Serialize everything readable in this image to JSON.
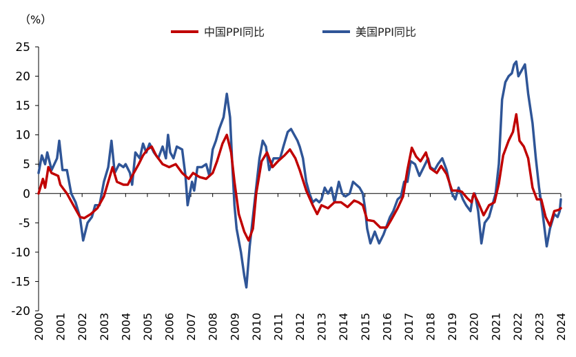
{
  "chart_data": {
    "type": "line",
    "unit_label": "（%）",
    "ylim": [
      -20,
      25
    ],
    "yticks": [
      25,
      20,
      15,
      10,
      5,
      0,
      -5,
      -10,
      -15,
      -20
    ],
    "xlim": [
      2000,
      2024
    ],
    "xticks": [
      "2000",
      "2001",
      "2002",
      "2003",
      "2004",
      "2005",
      "2006",
      "2007",
      "2008",
      "2009",
      "2010",
      "2011",
      "2012",
      "2013",
      "2014",
      "2015",
      "2016",
      "2017",
      "2018",
      "2019",
      "2020",
      "2021",
      "2022",
      "2023",
      "2024"
    ],
    "grid": false,
    "legend_position": "top",
    "series": [
      {
        "name": "中国PPI同比",
        "color": "#C00000",
        "points": [
          [
            2000.0,
            0
          ],
          [
            2000.2,
            2.5
          ],
          [
            2000.3,
            1
          ],
          [
            2000.45,
            4.5
          ],
          [
            2000.6,
            3.5
          ],
          [
            2000.9,
            3
          ],
          [
            2001.0,
            1.5
          ],
          [
            2001.3,
            0
          ],
          [
            2001.6,
            -2
          ],
          [
            2001.9,
            -4
          ],
          [
            2002.1,
            -4.2
          ],
          [
            2002.4,
            -3.5
          ],
          [
            2002.7,
            -2.5
          ],
          [
            2003.0,
            -0.5
          ],
          [
            2003.2,
            2
          ],
          [
            2003.4,
            4.5
          ],
          [
            2003.6,
            2
          ],
          [
            2003.9,
            1.5
          ],
          [
            2004.1,
            1.5
          ],
          [
            2004.3,
            3
          ],
          [
            2004.6,
            5
          ],
          [
            2004.8,
            6.5
          ],
          [
            2005.0,
            7.5
          ],
          [
            2005.2,
            8
          ],
          [
            2005.4,
            6.5
          ],
          [
            2005.7,
            5
          ],
          [
            2006.0,
            4.5
          ],
          [
            2006.3,
            5
          ],
          [
            2006.6,
            3.5
          ],
          [
            2006.9,
            2.5
          ],
          [
            2007.1,
            3.5
          ],
          [
            2007.4,
            2.8
          ],
          [
            2007.7,
            2.5
          ],
          [
            2008.0,
            3.5
          ],
          [
            2008.2,
            5.5
          ],
          [
            2008.45,
            8.5
          ],
          [
            2008.65,
            10
          ],
          [
            2008.85,
            7
          ],
          [
            2009.0,
            2
          ],
          [
            2009.2,
            -3.5
          ],
          [
            2009.45,
            -6.5
          ],
          [
            2009.65,
            -8
          ],
          [
            2009.85,
            -6
          ],
          [
            2010.0,
            0
          ],
          [
            2010.25,
            5.5
          ],
          [
            2010.5,
            7
          ],
          [
            2010.75,
            4.5
          ],
          [
            2011.0,
            5.5
          ],
          [
            2011.3,
            6.5
          ],
          [
            2011.55,
            7.5
          ],
          [
            2011.8,
            6
          ],
          [
            2012.0,
            4
          ],
          [
            2012.3,
            0.5
          ],
          [
            2012.6,
            -2
          ],
          [
            2012.8,
            -3.5
          ],
          [
            2013.0,
            -2
          ],
          [
            2013.3,
            -2.5
          ],
          [
            2013.6,
            -1.5
          ],
          [
            2013.9,
            -1.5
          ],
          [
            2014.2,
            -2.3
          ],
          [
            2014.5,
            -1.2
          ],
          [
            2014.7,
            -1.5
          ],
          [
            2014.9,
            -2
          ],
          [
            2015.1,
            -4.5
          ],
          [
            2015.4,
            -4.7
          ],
          [
            2015.7,
            -5.8
          ],
          [
            2016.0,
            -5.8
          ],
          [
            2016.2,
            -4.5
          ],
          [
            2016.5,
            -2.5
          ],
          [
            2016.75,
            -0.5
          ],
          [
            2016.95,
            4
          ],
          [
            2017.15,
            7.8
          ],
          [
            2017.35,
            6.3
          ],
          [
            2017.55,
            5.5
          ],
          [
            2017.8,
            7
          ],
          [
            2018.0,
            4.3
          ],
          [
            2018.3,
            3.5
          ],
          [
            2018.5,
            4.7
          ],
          [
            2018.75,
            3.3
          ],
          [
            2019.0,
            0.5
          ],
          [
            2019.2,
            0.5
          ],
          [
            2019.45,
            0.3
          ],
          [
            2019.7,
            -0.8
          ],
          [
            2019.9,
            -1.5
          ],
          [
            2020.0,
            0
          ],
          [
            2020.2,
            -1.5
          ],
          [
            2020.45,
            -3.7
          ],
          [
            2020.7,
            -2
          ],
          [
            2020.95,
            -1.5
          ],
          [
            2021.15,
            1.7
          ],
          [
            2021.35,
            6.5
          ],
          [
            2021.6,
            9
          ],
          [
            2021.8,
            10.5
          ],
          [
            2021.95,
            13.5
          ],
          [
            2022.1,
            9
          ],
          [
            2022.3,
            8
          ],
          [
            2022.5,
            6
          ],
          [
            2022.7,
            1
          ],
          [
            2022.9,
            -1
          ],
          [
            2023.1,
            -1
          ],
          [
            2023.3,
            -4
          ],
          [
            2023.5,
            -5.5
          ],
          [
            2023.7,
            -3
          ],
          [
            2023.9,
            -2.8
          ],
          [
            2024.0,
            -2.5
          ]
        ]
      },
      {
        "name": "美国PPI同比",
        "color": "#2F5597",
        "points": [
          [
            2000.0,
            3.5
          ],
          [
            2000.15,
            6.5
          ],
          [
            2000.3,
            5
          ],
          [
            2000.4,
            7
          ],
          [
            2000.6,
            4
          ],
          [
            2000.85,
            6
          ],
          [
            2000.95,
            9
          ],
          [
            2001.1,
            4
          ],
          [
            2001.3,
            4
          ],
          [
            2001.5,
            0
          ],
          [
            2001.7,
            -1.5
          ],
          [
            2001.9,
            -4
          ],
          [
            2002.05,
            -8
          ],
          [
            2002.25,
            -5
          ],
          [
            2002.45,
            -4
          ],
          [
            2002.6,
            -2
          ],
          [
            2002.8,
            -2
          ],
          [
            2003.0,
            2
          ],
          [
            2003.2,
            4.5
          ],
          [
            2003.35,
            9
          ],
          [
            2003.5,
            3.5
          ],
          [
            2003.7,
            5
          ],
          [
            2003.9,
            4.5
          ],
          [
            2004.0,
            5
          ],
          [
            2004.2,
            3.5
          ],
          [
            2004.3,
            1.5
          ],
          [
            2004.45,
            7
          ],
          [
            2004.65,
            6
          ],
          [
            2004.8,
            8.5
          ],
          [
            2004.95,
            7
          ],
          [
            2005.1,
            8.5
          ],
          [
            2005.3,
            7
          ],
          [
            2005.5,
            6
          ],
          [
            2005.7,
            8
          ],
          [
            2005.85,
            6
          ],
          [
            2005.95,
            10
          ],
          [
            2006.05,
            7
          ],
          [
            2006.2,
            6
          ],
          [
            2006.35,
            8
          ],
          [
            2006.6,
            7.5
          ],
          [
            2006.75,
            3
          ],
          [
            2006.85,
            -2
          ],
          [
            2006.95,
            0
          ],
          [
            2007.05,
            2
          ],
          [
            2007.15,
            0.5
          ],
          [
            2007.3,
            4.5
          ],
          [
            2007.5,
            4.5
          ],
          [
            2007.7,
            5
          ],
          [
            2007.85,
            3
          ],
          [
            2008.0,
            7.5
          ],
          [
            2008.15,
            9
          ],
          [
            2008.3,
            11
          ],
          [
            2008.5,
            13
          ],
          [
            2008.65,
            17
          ],
          [
            2008.8,
            13
          ],
          [
            2008.9,
            5
          ],
          [
            2009.0,
            -2
          ],
          [
            2009.1,
            -6
          ],
          [
            2009.3,
            -10
          ],
          [
            2009.45,
            -14
          ],
          [
            2009.55,
            -16
          ],
          [
            2009.7,
            -9
          ],
          [
            2009.85,
            -4
          ],
          [
            2010.0,
            1
          ],
          [
            2010.15,
            6
          ],
          [
            2010.3,
            9
          ],
          [
            2010.45,
            8
          ],
          [
            2010.6,
            4
          ],
          [
            2010.8,
            6
          ],
          [
            2010.95,
            6
          ],
          [
            2011.1,
            6
          ],
          [
            2011.25,
            8
          ],
          [
            2011.45,
            10.5
          ],
          [
            2011.6,
            11
          ],
          [
            2011.75,
            10
          ],
          [
            2011.9,
            9
          ],
          [
            2012.0,
            8
          ],
          [
            2012.15,
            6
          ],
          [
            2012.3,
            2
          ],
          [
            2012.45,
            0
          ],
          [
            2012.6,
            -1.5
          ],
          [
            2012.75,
            -1
          ],
          [
            2012.9,
            -1.5
          ],
          [
            2013.0,
            -1
          ],
          [
            2013.15,
            1
          ],
          [
            2013.3,
            0
          ],
          [
            2013.45,
            1
          ],
          [
            2013.6,
            -1.5
          ],
          [
            2013.8,
            2
          ],
          [
            2013.95,
            0
          ],
          [
            2014.1,
            -0.5
          ],
          [
            2014.3,
            0
          ],
          [
            2014.45,
            2
          ],
          [
            2014.6,
            1.5
          ],
          [
            2014.75,
            1
          ],
          [
            2014.9,
            0
          ],
          [
            2015.0,
            -2.5
          ],
          [
            2015.1,
            -6
          ],
          [
            2015.25,
            -8.5
          ],
          [
            2015.45,
            -6.5
          ],
          [
            2015.65,
            -8.5
          ],
          [
            2015.85,
            -7
          ],
          [
            2016.0,
            -5.5
          ],
          [
            2016.15,
            -4
          ],
          [
            2016.3,
            -3
          ],
          [
            2016.5,
            -1
          ],
          [
            2016.65,
            -0.5
          ],
          [
            2016.8,
            2
          ],
          [
            2016.95,
            2
          ],
          [
            2017.1,
            5.5
          ],
          [
            2017.3,
            5
          ],
          [
            2017.5,
            3
          ],
          [
            2017.7,
            4.5
          ],
          [
            2017.9,
            6
          ],
          [
            2018.0,
            4.5
          ],
          [
            2018.2,
            4
          ],
          [
            2018.35,
            5
          ],
          [
            2018.55,
            6
          ],
          [
            2018.75,
            4
          ],
          [
            2018.9,
            1.5
          ],
          [
            2019.0,
            0
          ],
          [
            2019.15,
            -1
          ],
          [
            2019.3,
            1
          ],
          [
            2019.5,
            -1
          ],
          [
            2019.65,
            -2
          ],
          [
            2019.85,
            -3
          ],
          [
            2019.95,
            -0.5
          ],
          [
            2020.05,
            0
          ],
          [
            2020.2,
            -3
          ],
          [
            2020.35,
            -8.5
          ],
          [
            2020.5,
            -5
          ],
          [
            2020.7,
            -4
          ],
          [
            2020.85,
            -2
          ],
          [
            2021.0,
            0
          ],
          [
            2021.15,
            5
          ],
          [
            2021.3,
            16
          ],
          [
            2021.45,
            19
          ],
          [
            2021.6,
            20
          ],
          [
            2021.75,
            20.5
          ],
          [
            2021.85,
            22
          ],
          [
            2021.95,
            22.5
          ],
          [
            2022.05,
            20
          ],
          [
            2022.2,
            21
          ],
          [
            2022.35,
            22
          ],
          [
            2022.5,
            17
          ],
          [
            2022.7,
            12
          ],
          [
            2022.85,
            6
          ],
          [
            2023.0,
            1
          ],
          [
            2023.15,
            -3
          ],
          [
            2023.35,
            -9
          ],
          [
            2023.5,
            -6
          ],
          [
            2023.7,
            -3.5
          ],
          [
            2023.85,
            -4
          ],
          [
            2023.95,
            -3
          ],
          [
            2024.0,
            -1
          ]
        ]
      }
    ]
  }
}
